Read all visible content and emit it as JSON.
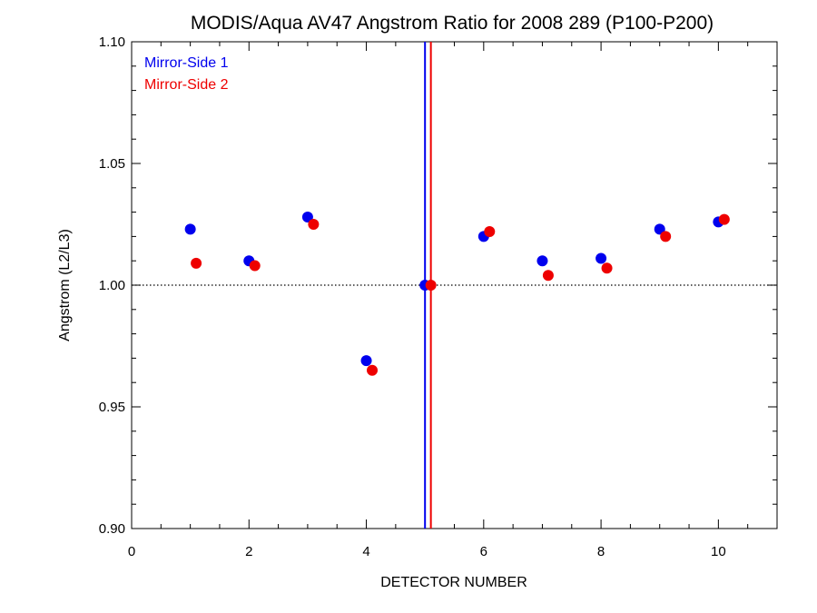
{
  "chart_data": {
    "type": "scatter",
    "title": "MODIS/Aqua AV47 Angstrom Ratio for 2008 289 (P100-P200)",
    "xlabel": "DETECTOR NUMBER",
    "ylabel": "Angstrom (L2/L3)",
    "xlim": [
      0,
      11
    ],
    "ylim": [
      0.9,
      1.1
    ],
    "xticks": [
      0,
      2,
      4,
      6,
      8,
      10
    ],
    "xtick_labels": [
      "0",
      "2",
      "4",
      "6",
      "8",
      "10"
    ],
    "yticks": [
      0.9,
      0.95,
      1.0,
      1.05,
      1.1
    ],
    "ytick_labels": [
      "0.90",
      "0.95",
      "1.00",
      "1.05",
      "1.10"
    ],
    "x_minor_step": 0.5,
    "y_minor_step": 0.01,
    "reference_line": {
      "y": 1.0,
      "style": "dotted"
    },
    "legend_position": "top-left",
    "series": [
      {
        "name": "Mirror-Side 1",
        "color": "#0000ee",
        "x": [
          1,
          2,
          3,
          4,
          5,
          6,
          7,
          8,
          9,
          10
        ],
        "y": [
          1.023,
          1.01,
          1.028,
          0.969,
          1.0,
          1.02,
          1.01,
          1.011,
          1.023,
          1.026
        ],
        "vline": 5.0
      },
      {
        "name": "Mirror-Side 2",
        "color": "#ee0000",
        "x": [
          1.1,
          2.1,
          3.1,
          4.1,
          5.1,
          6.1,
          7.1,
          8.1,
          9.1,
          10.1
        ],
        "y": [
          1.009,
          1.008,
          1.025,
          0.965,
          1.0,
          1.022,
          1.004,
          1.007,
          1.02,
          1.027
        ],
        "vline": 5.1
      }
    ]
  }
}
